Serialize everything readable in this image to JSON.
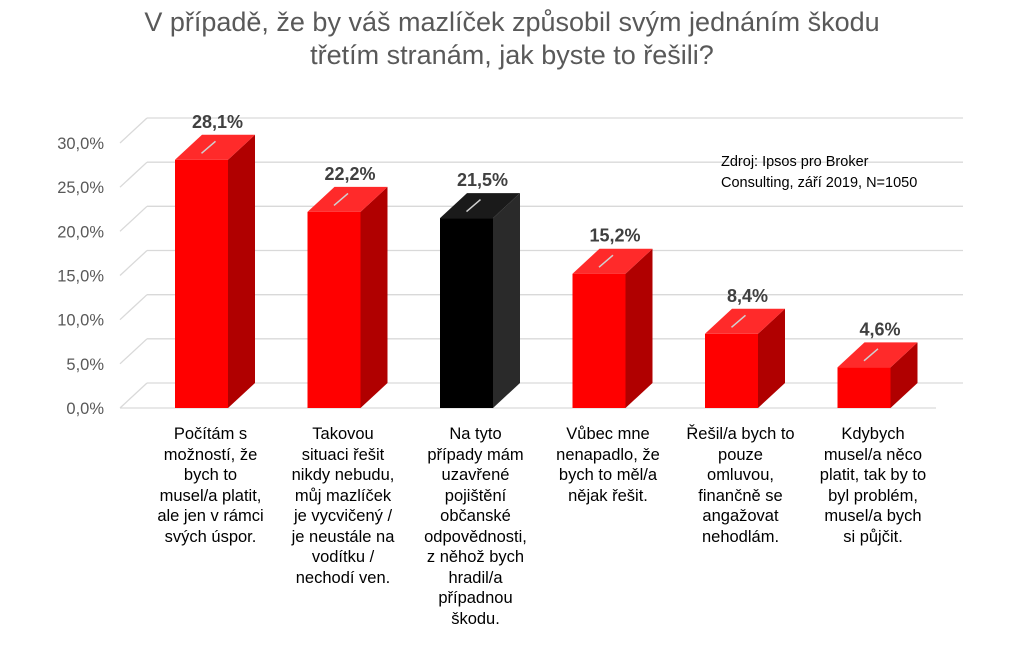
{
  "chart_data": {
    "type": "bar",
    "title_lines": [
      "V případě, že by váš mazlíček způsobil svým jednáním škodu",
      "třetím stranám, jak byste to řešili?"
    ],
    "source_lines": [
      "Zdroj: Ipsos pro Broker",
      "Consulting, září 2019, N=1050"
    ],
    "categories": [
      [
        "Počítám s",
        "možností, že",
        "bych to",
        "musel/a platit,",
        "ale jen v rámci",
        "svých úspor."
      ],
      [
        "Takovou",
        "situaci řešit",
        "nikdy nebudu,",
        "můj mazlíček",
        "je vycvičený /",
        "je neustále na",
        "vodítku /",
        "nechodí ven."
      ],
      [
        "Na tyto",
        "případy mám",
        "uzavřené",
        "pojištění",
        "občanské",
        "odpovědnosti,",
        "z něhož bych",
        "hradil/a",
        "případnou",
        "škodu."
      ],
      [
        "Vůbec mne",
        "nenapadlo, že",
        "bych to měl/a",
        "nějak řešit."
      ],
      [
        "Řešil/a bych to",
        "pouze",
        "omluvou,",
        "finančně se",
        "angažovat",
        "nehodlám."
      ],
      [
        "Kdybych",
        "musel/a něco",
        "platit, tak by to",
        "byl problém,",
        "musel/a bych",
        "si půjčit."
      ]
    ],
    "values": [
      28.1,
      22.2,
      21.5,
      15.2,
      8.4,
      4.6
    ],
    "value_labels": [
      "28,1%",
      "22,2%",
      "21,5%",
      "15,2%",
      "8,4%",
      "4,6%"
    ],
    "highlight_index": 2,
    "y_ticks": [
      0,
      5,
      10,
      15,
      20,
      25,
      30
    ],
    "y_tick_labels": [
      "0,0%",
      "5,0%",
      "10,0%",
      "15,0%",
      "20,0%",
      "25,0%",
      "30,0%"
    ],
    "ylim": [
      0,
      30
    ],
    "grid": true,
    "colors": {
      "bar_front": "#ff0000",
      "bar_top": "#ff2a2a",
      "bar_side": "#b00000",
      "highlight_front": "#000000",
      "highlight_top": "#1a1a1a",
      "highlight_side": "#2a2a2a",
      "grid": "#d9d9d9",
      "title": "#595959"
    }
  }
}
